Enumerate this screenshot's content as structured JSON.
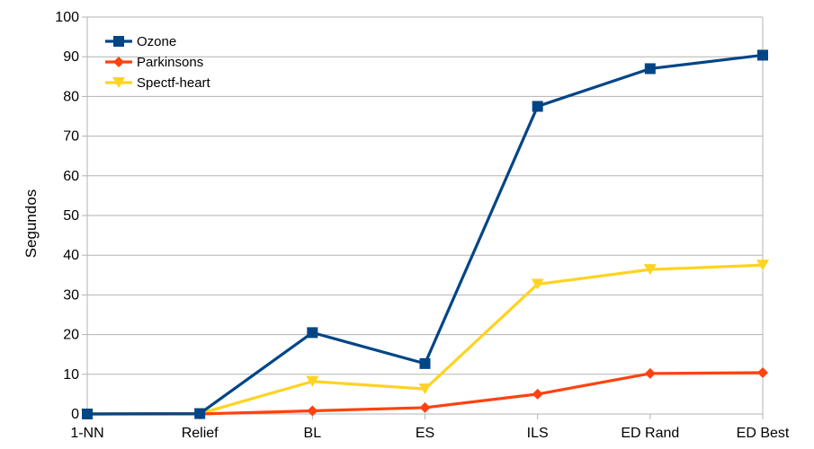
{
  "chart_data": {
    "type": "line",
    "title": "",
    "xlabel": "",
    "ylabel": "Segundos",
    "categories": [
      "1-NN",
      "Relief",
      "BL",
      "ES",
      "ILS",
      "ED Rand",
      "ED Best"
    ],
    "ylim": [
      0,
      100
    ],
    "yticks": [
      0,
      10,
      20,
      30,
      40,
      50,
      60,
      70,
      80,
      90,
      100
    ],
    "grid": true,
    "legend_position": "top-left",
    "series": [
      {
        "name": "Ozone",
        "color": "#004586",
        "marker": "square",
        "values": [
          0,
          0.1,
          20.5,
          12.7,
          77.5,
          87,
          90.4
        ]
      },
      {
        "name": "Parkinsons",
        "color": "#FF420E",
        "marker": "diamond",
        "values": [
          0,
          0,
          0.8,
          1.6,
          5.0,
          10.2,
          10.4
        ]
      },
      {
        "name": "Spectf-heart",
        "color": "#FFD320",
        "marker": "triangle-down",
        "values": [
          0,
          0.1,
          8.2,
          6.3,
          32.7,
          36.4,
          37.5
        ]
      }
    ]
  }
}
